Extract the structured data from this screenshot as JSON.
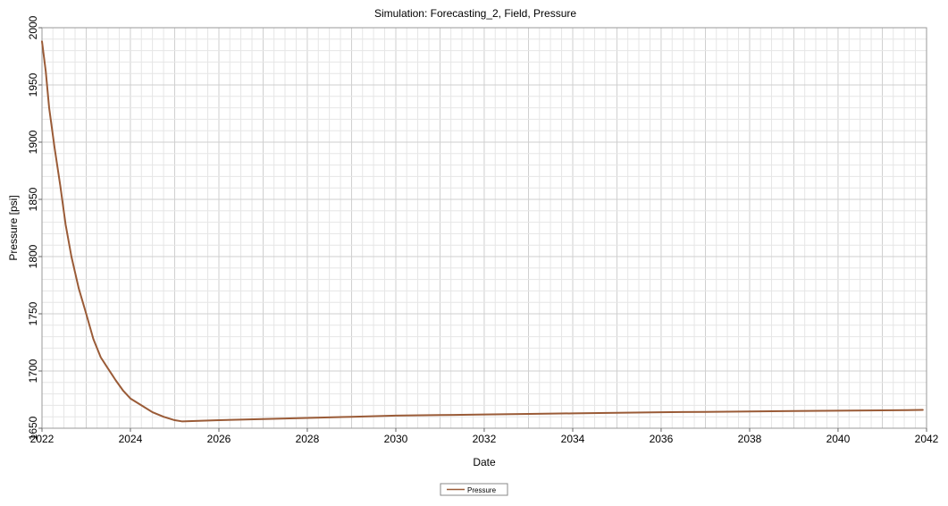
{
  "chart_data": {
    "type": "line",
    "title": "Simulation: Forecasting_2, Field, Pressure",
    "xlabel": "Date",
    "ylabel": "Pressure [psi]",
    "x_type": "date",
    "xlim": [
      "2022-01-01",
      "2042-01-01"
    ],
    "ylim": [
      1650,
      2000
    ],
    "x_ticks": [
      "2022",
      "2024",
      "2026",
      "2028",
      "2030",
      "2032",
      "2034",
      "2036",
      "2038",
      "2040",
      "2042"
    ],
    "y_ticks": [
      "1650",
      "1700",
      "1750",
      "1800",
      "1850",
      "1900",
      "1950",
      "2000"
    ],
    "grid": true,
    "legend_position": "bottom-center",
    "series": [
      {
        "name": "Pressure",
        "color": "#9a5b37",
        "points": [
          [
            "2022-01-01",
            1988
          ],
          [
            "2022-02-01",
            1962
          ],
          [
            "2022-03-01",
            1930
          ],
          [
            "2022-04-15",
            1895
          ],
          [
            "2022-06-01",
            1862
          ],
          [
            "2022-07-15",
            1828
          ],
          [
            "2022-09-01",
            1800
          ],
          [
            "2022-11-01",
            1772
          ],
          [
            "2023-01-01",
            1750
          ],
          [
            "2023-03-01",
            1728
          ],
          [
            "2023-05-01",
            1712
          ],
          [
            "2023-07-01",
            1702
          ],
          [
            "2023-09-01",
            1692
          ],
          [
            "2023-11-01",
            1683
          ],
          [
            "2024-01-01",
            1676
          ],
          [
            "2024-04-01",
            1670
          ],
          [
            "2024-07-01",
            1664
          ],
          [
            "2024-10-01",
            1660
          ],
          [
            "2025-01-01",
            1657
          ],
          [
            "2025-03-01",
            1656
          ],
          [
            "2026-01-01",
            1657
          ],
          [
            "2027-01-01",
            1658
          ],
          [
            "2028-01-01",
            1659
          ],
          [
            "2029-01-01",
            1660
          ],
          [
            "2030-01-01",
            1661
          ],
          [
            "2031-01-01",
            1661.5
          ],
          [
            "2032-01-01",
            1662
          ],
          [
            "2033-01-01",
            1662.5
          ],
          [
            "2034-01-01",
            1663
          ],
          [
            "2035-01-01",
            1663.5
          ],
          [
            "2036-01-01",
            1664
          ],
          [
            "2037-01-01",
            1664.3
          ],
          [
            "2038-01-01",
            1664.6
          ],
          [
            "2039-01-01",
            1665
          ],
          [
            "2040-01-01",
            1665.3
          ],
          [
            "2041-01-01",
            1665.6
          ],
          [
            "2041-12-01",
            1666
          ]
        ]
      }
    ]
  }
}
